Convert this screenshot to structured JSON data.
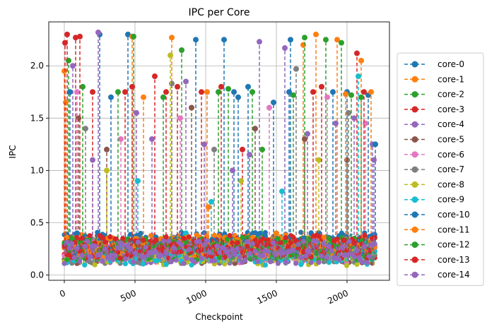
{
  "chart_data": {
    "type": "line",
    "title": "IPC per Core",
    "xlabel": "Checkpoint",
    "ylabel": "IPC",
    "xlim": [
      -110,
      2300
    ],
    "ylim": [
      -0.05,
      2.42
    ],
    "xticks": [
      0,
      500,
      1000,
      1500,
      2000
    ],
    "yticks": [
      0.0,
      0.5,
      1.0,
      1.5,
      2.0
    ],
    "xtick_labels": [
      "0",
      "500",
      "1000",
      "1500",
      "2000"
    ],
    "ytick_labels": [
      "0.0",
      "0.5",
      "1.0",
      "1.5",
      "2.0"
    ],
    "xtick_rotation_deg": 25,
    "grid": true,
    "legend_position": "outside-right",
    "marker": "circle",
    "line_style": "dashed",
    "x_range_of_data": [
      0,
      2200
    ],
    "series": [
      {
        "name": "core-0",
        "color": "#1f77b4",
        "points": [
          [
            250,
            2.3
          ],
          [
            450,
            2.3
          ],
          [
            930,
            2.25
          ],
          [
            1130,
            2.25
          ],
          [
            1200,
            1.75
          ],
          [
            1300,
            1.8
          ],
          [
            1600,
            2.25
          ],
          [
            1900,
            1.75
          ],
          [
            2000,
            1.75
          ],
          [
            2150,
            1.72
          ]
        ],
        "typical_ipc": 0.3
      },
      {
        "name": "core-1",
        "color": "#ff7f0e",
        "points": [
          [
            0,
            1.95
          ],
          [
            480,
            2.28
          ],
          [
            760,
            2.27
          ],
          [
            1020,
            0.65
          ],
          [
            1500,
            0.4
          ],
          [
            1690,
            2.2
          ],
          [
            1780,
            2.3
          ],
          [
            1930,
            2.25
          ],
          [
            2100,
            2.05
          ],
          [
            2170,
            1.75
          ]
        ],
        "typical_ipc": 0.28
      },
      {
        "name": "core-2",
        "color": "#2ca02c",
        "points": [
          [
            30,
            2.05
          ],
          [
            490,
            2.28
          ],
          [
            830,
            2.15
          ],
          [
            1090,
            1.75
          ],
          [
            1330,
            1.75
          ],
          [
            1400,
            1.2
          ],
          [
            1700,
            2.27
          ],
          [
            1850,
            2.25
          ],
          [
            1960,
            2.22
          ],
          [
            2100,
            1.7
          ]
        ],
        "typical_ipc": 0.25
      },
      {
        "name": "core-3",
        "color": "#d62728",
        "points": [
          [
            20,
            2.3
          ],
          [
            80,
            2.27
          ],
          [
            200,
            1.75
          ],
          [
            430,
            1.75
          ],
          [
            640,
            1.9
          ],
          [
            800,
            1.8
          ],
          [
            970,
            1.75
          ],
          [
            1260,
            1.2
          ],
          [
            1760,
            1.75
          ],
          [
            2070,
            2.12
          ]
        ],
        "typical_ipc": 0.27
      },
      {
        "name": "core-4",
        "color": "#9467bd",
        "points": [
          [
            60,
            2.0
          ],
          [
            240,
            2.32
          ],
          [
            510,
            1.55
          ],
          [
            860,
            1.85
          ],
          [
            1190,
            1.0
          ],
          [
            1380,
            2.23
          ],
          [
            1560,
            2.17
          ],
          [
            1920,
            1.45
          ],
          [
            2050,
            1.5
          ],
          [
            2180,
            1.25
          ]
        ],
        "typical_ipc": 0.22
      },
      {
        "name": "core-5",
        "color": "#8c564b",
        "points": [
          [
            100,
            1.5
          ],
          [
            300,
            1.2
          ],
          [
            900,
            1.6
          ],
          [
            1350,
            1.4
          ],
          [
            1700,
            1.3
          ],
          [
            2000,
            1.1
          ]
        ],
        "typical_ipc": 0.22
      },
      {
        "name": "core-6",
        "color": "#e377c2",
        "points": [
          [
            90,
            1.75
          ],
          [
            400,
            1.3
          ],
          [
            820,
            1.5
          ],
          [
            1450,
            1.6
          ],
          [
            1860,
            1.7
          ],
          [
            2130,
            1.45
          ]
        ],
        "typical_ipc": 0.22
      },
      {
        "name": "core-7",
        "color": "#7f7f7f",
        "points": [
          [
            150,
            1.4
          ],
          [
            760,
            1.83
          ],
          [
            1060,
            1.2
          ],
          [
            1640,
            1.97
          ],
          [
            2010,
            1.55
          ]
        ],
        "typical_ipc": 0.22
      },
      {
        "name": "core-8",
        "color": "#bcbd22",
        "points": [
          [
            300,
            1.0
          ],
          [
            750,
            2.1
          ],
          [
            1250,
            0.9
          ],
          [
            1800,
            1.1
          ]
        ],
        "typical_ipc": 0.2
      },
      {
        "name": "core-9",
        "color": "#17becf",
        "points": [
          [
            520,
            0.9
          ],
          [
            860,
            0.4
          ],
          [
            1040,
            0.7
          ],
          [
            1540,
            0.8
          ],
          [
            2080,
            1.9
          ]
        ],
        "typical_ipc": 0.2
      },
      {
        "name": "core-10",
        "color": "#1f77b4",
        "points": [
          [
            40,
            1.75
          ],
          [
            330,
            1.7
          ],
          [
            1230,
            1.7
          ],
          [
            1480,
            1.65
          ],
          [
            1590,
            1.75
          ],
          [
            2200,
            1.25
          ]
        ],
        "typical_ipc": 0.3
      },
      {
        "name": "core-11",
        "color": "#ff7f0e",
        "points": [
          [
            10,
            1.65
          ],
          [
            560,
            1.7
          ],
          [
            1010,
            1.75
          ],
          [
            1990,
            1.73
          ]
        ],
        "typical_ipc": 0.28
      },
      {
        "name": "core-12",
        "color": "#2ca02c",
        "points": [
          [
            130,
            1.8
          ],
          [
            380,
            1.75
          ],
          [
            700,
            1.7
          ],
          [
            1160,
            1.78
          ],
          [
            1620,
            1.72
          ],
          [
            2030,
            1.72
          ]
        ],
        "typical_ipc": 0.25
      },
      {
        "name": "core-13",
        "color": "#d62728",
        "points": [
          [
            5,
            2.22
          ],
          [
            110,
            2.28
          ],
          [
            480,
            1.8
          ],
          [
            720,
            1.75
          ],
          [
            1110,
            1.8
          ],
          [
            1820,
            1.8
          ],
          [
            2120,
            1.75
          ]
        ],
        "typical_ipc": 0.27
      },
      {
        "name": "core-14",
        "color": "#9467bd",
        "points": [
          [
            200,
            1.1
          ],
          [
            620,
            1.3
          ],
          [
            990,
            1.25
          ],
          [
            1310,
            1.15
          ],
          [
            1720,
            1.35
          ],
          [
            2190,
            1.1
          ]
        ],
        "typical_ipc": 0.22
      }
    ]
  }
}
